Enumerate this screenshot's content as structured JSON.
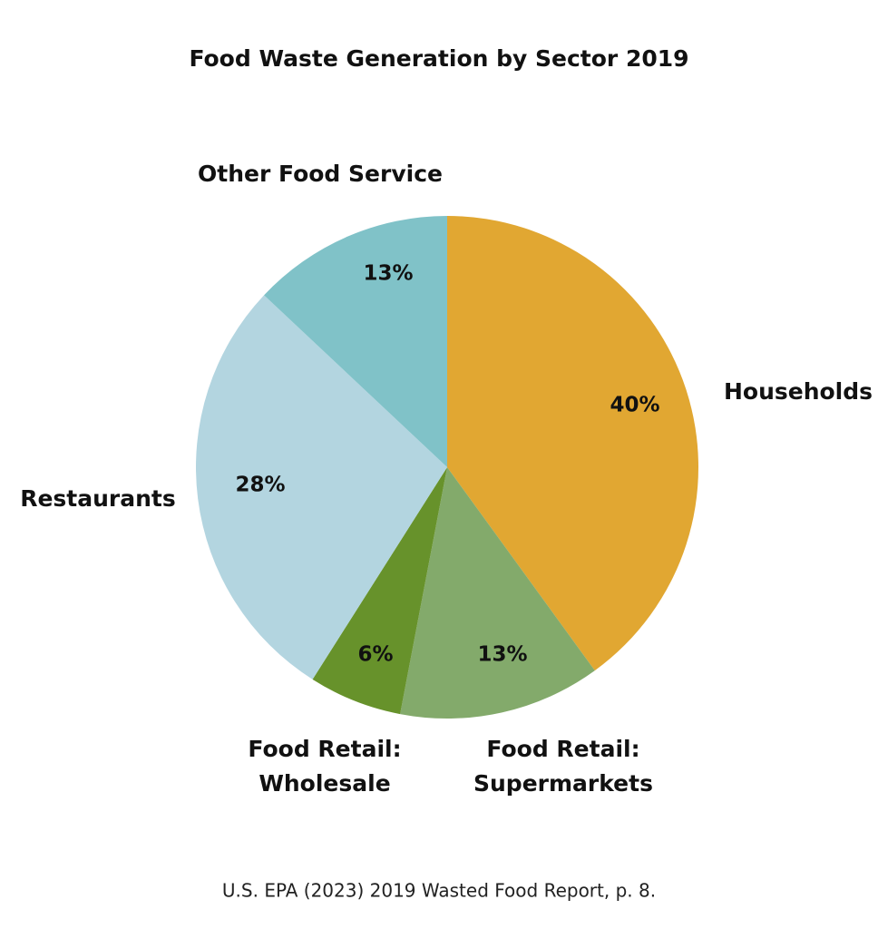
{
  "chart_data": {
    "type": "pie",
    "title": "Food Waste Generation by Sector 2019",
    "categories": [
      "Households",
      "Food Retail: Supermarkets",
      "Food Retail: Wholesale",
      "Restaurants",
      "Other Food Service"
    ],
    "values": [
      40,
      13,
      6,
      28,
      13
    ],
    "value_labels": [
      "40%",
      "13%",
      "6%",
      "28%",
      "13%"
    ],
    "colors": [
      "#e1a732",
      "#83aa6b",
      "#67922b",
      "#b3d5e0",
      "#80c2c8"
    ],
    "source": "U.S. EPA (2023) 2019 Wasted Food Report, p. 8."
  }
}
